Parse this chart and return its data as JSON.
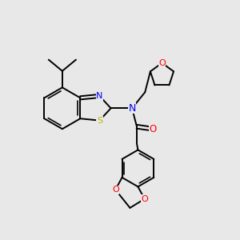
{
  "background_color": "#e8e8e8",
  "bond_color": "#000000",
  "atom_colors": {
    "N": "#0000ff",
    "O": "#ff0000",
    "S": "#b8b800",
    "C": "#000000"
  },
  "bond_width": 1.4,
  "figsize": [
    3.0,
    3.0
  ],
  "dpi": 100,
  "xlim": [
    0,
    10
  ],
  "ylim": [
    0,
    10
  ]
}
